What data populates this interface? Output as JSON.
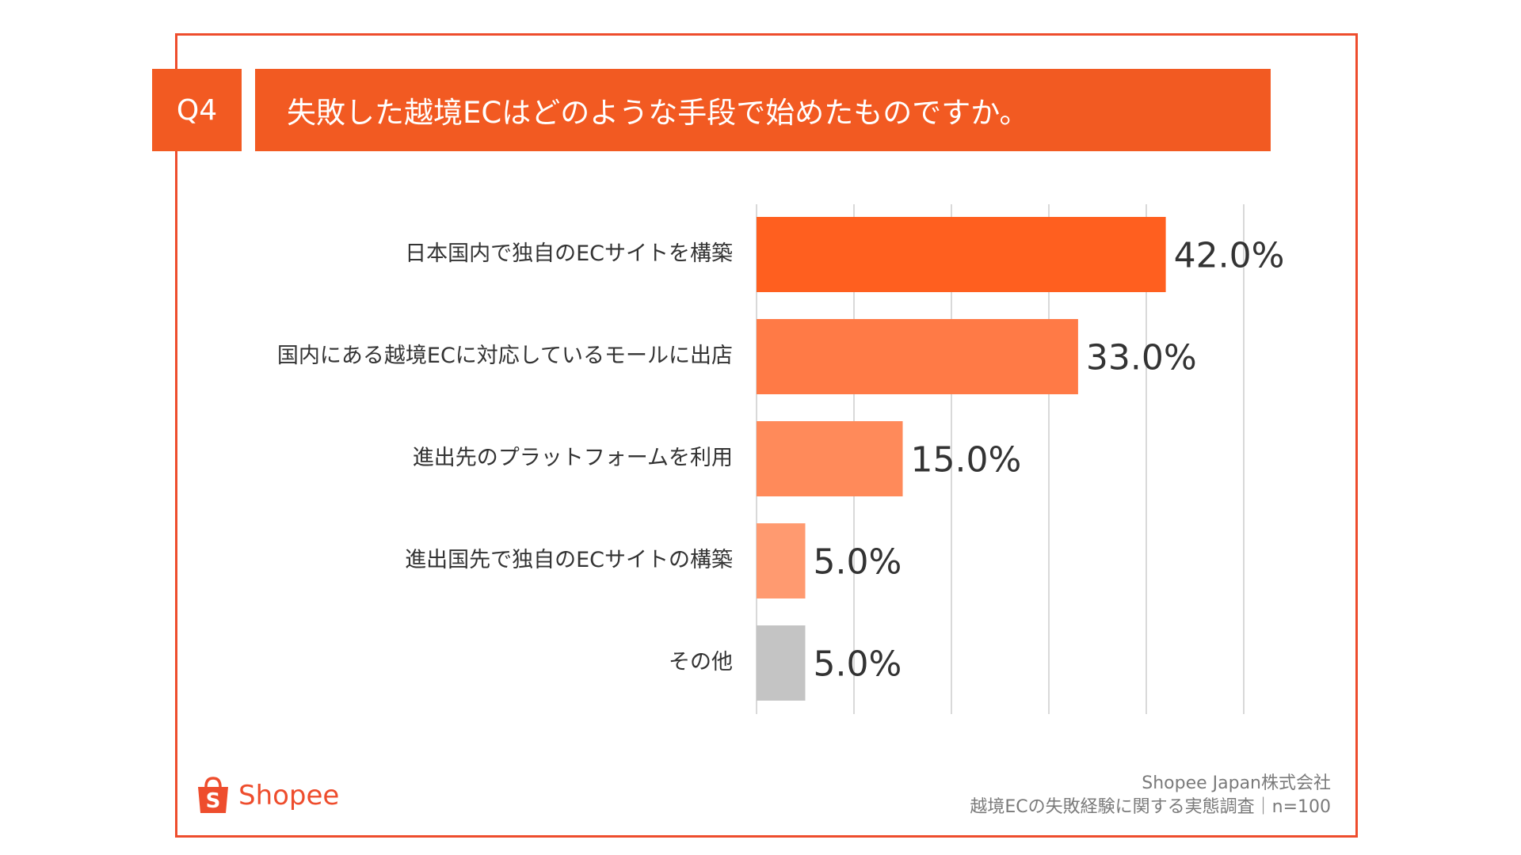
{
  "question": {
    "badge": "Q4",
    "title": "失敗した越境ECはどのような手段で始めたものですか。"
  },
  "chart_data": {
    "type": "bar",
    "orientation": "horizontal",
    "categories": [
      "日本国内で独自のECサイトを構築",
      "国内にある越境ECに対応しているモールに出店",
      "進出先のプラットフォームを利用",
      "進出国先で独自のECサイトの構築",
      "その他"
    ],
    "values": [
      42.0,
      33.0,
      15.0,
      5.0,
      5.0
    ],
    "value_labels": [
      "42.0%",
      "33.0%",
      "15.0%",
      "5.0%",
      "5.0%"
    ],
    "colors": [
      "#ff5f1f",
      "#ff7a46",
      "#ff8a5a",
      "#ff9a70",
      "#c4c4c4"
    ],
    "xlim": [
      0,
      50
    ],
    "grid": true,
    "title": "",
    "xlabel": "",
    "ylabel": ""
  },
  "footer": {
    "logo_text": "Shopee",
    "logo_icon": "shopping-bag-icon",
    "source_line1": "Shopee Japan株式会社",
    "source_line2": "越境ECの失敗経験に関する実態調査｜n=100"
  }
}
